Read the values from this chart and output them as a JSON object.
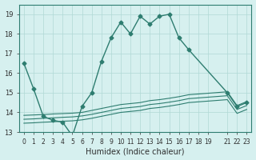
{
  "xlabel": "Humidex (Indice chaleur)",
  "bg_color": "#d6f0ef",
  "line_color": "#2e7d70",
  "grid_color": "#b0d8d5",
  "ylim": [
    13,
    19.5
  ],
  "xlim": [
    -0.5,
    23.5
  ],
  "yticks": [
    13,
    14,
    15,
    16,
    17,
    18,
    19
  ],
  "xticks": [
    0,
    1,
    2,
    3,
    4,
    5,
    6,
    7,
    8,
    9,
    10,
    11,
    12,
    13,
    14,
    15,
    16,
    17,
    18,
    19,
    21,
    22,
    23
  ],
  "xtick_labels": [
    "0",
    "1",
    "2",
    "3",
    "4",
    "5",
    "6",
    "7",
    "8",
    "9",
    "10",
    "11",
    "12",
    "13",
    "14",
    "15",
    "16",
    "17",
    "18",
    "19",
    "21",
    "22",
    "23"
  ],
  "main_line": {
    "x": [
      0,
      1,
      2,
      3,
      4,
      5,
      6,
      7,
      8,
      9,
      10,
      11,
      12,
      13,
      14,
      15,
      16,
      17,
      21,
      22,
      23
    ],
    "y": [
      16.5,
      15.2,
      13.8,
      13.6,
      13.5,
      12.8,
      14.3,
      15.0,
      16.6,
      17.8,
      18.6,
      18.0,
      18.9,
      18.5,
      18.9,
      19.0,
      17.8,
      17.2,
      15.0,
      14.3,
      14.5
    ]
  },
  "band_lines": [
    {
      "x": [
        0,
        1,
        2,
        3,
        4,
        5,
        6,
        7,
        8,
        9,
        10,
        11,
        12,
        13,
        14,
        15,
        16,
        17,
        21,
        22,
        23
      ],
      "y": [
        13.85,
        13.87,
        13.89,
        13.92,
        13.94,
        13.96,
        14.0,
        14.1,
        14.2,
        14.3,
        14.4,
        14.45,
        14.5,
        14.6,
        14.65,
        14.72,
        14.8,
        14.9,
        15.05,
        14.35,
        14.55
      ]
    },
    {
      "x": [
        0,
        1,
        2,
        3,
        4,
        5,
        6,
        7,
        8,
        9,
        10,
        11,
        12,
        13,
        14,
        15,
        16,
        17,
        21,
        22,
        23
      ],
      "y": [
        13.65,
        13.67,
        13.7,
        13.72,
        13.75,
        13.77,
        13.82,
        13.9,
        14.0,
        14.1,
        14.2,
        14.25,
        14.3,
        14.4,
        14.45,
        14.52,
        14.6,
        14.7,
        14.85,
        14.15,
        14.35
      ]
    },
    {
      "x": [
        0,
        1,
        2,
        3,
        4,
        5,
        6,
        7,
        8,
        9,
        10,
        11,
        12,
        13,
        14,
        15,
        16,
        17,
        21,
        22,
        23
      ],
      "y": [
        13.45,
        13.47,
        13.5,
        13.52,
        13.55,
        13.57,
        13.62,
        13.7,
        13.8,
        13.9,
        14.0,
        14.05,
        14.1,
        14.2,
        14.25,
        14.32,
        14.4,
        14.5,
        14.65,
        13.95,
        14.15
      ]
    }
  ]
}
